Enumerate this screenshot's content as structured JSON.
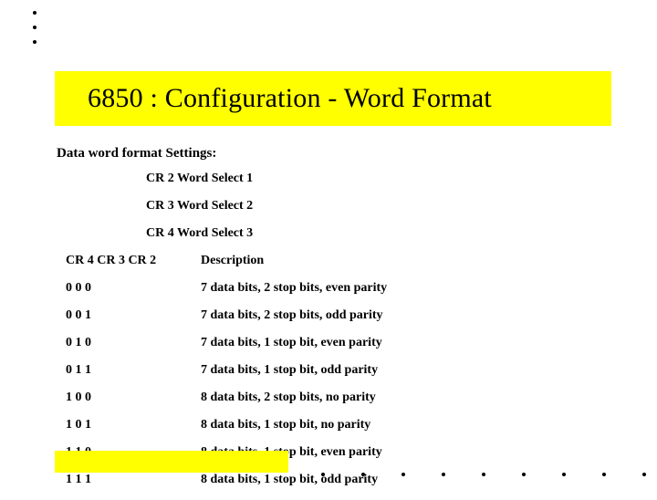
{
  "title": "6850 : Configuration - Word Format",
  "subtitle": "Data word format Settings:",
  "registers": [
    "CR 2 Word Select 1",
    "CR 3 Word Select 2",
    "CR 4 Word Select 3"
  ],
  "header": {
    "bits": "CR 4 CR 3 CR 2",
    "desc": "Description"
  },
  "rows": [
    {
      "bits": "0 0 0",
      "desc": "7 data bits, 2 stop bits, even parity"
    },
    {
      "bits": "0 0 1",
      "desc": "7 data bits, 2 stop bits, odd parity"
    },
    {
      "bits": "0 1 0",
      "desc": "7 data bits, 1 stop bit, even parity"
    },
    {
      "bits": "0 1 1",
      "desc": "7 data bits, 1 stop bit, odd parity"
    },
    {
      "bits": "1 0 0",
      "desc": "8 data bits, 2 stop bits, no parity"
    },
    {
      "bits": "1 0 1",
      "desc": "8 data bits, 1 stop bit, no parity"
    },
    {
      "bits": "1 1 0",
      "desc": "8 data bits, 1 stop bit, even parity"
    },
    {
      "bits": "1 1 1",
      "desc": "8 data bits, 1 stop bit, odd parity"
    }
  ],
  "colors": {
    "highlight": "#ffff00",
    "text": "#000000",
    "background": "#ffffff"
  },
  "fonts": {
    "title_size_pt": 30,
    "body_size_pt": 14,
    "family": "Times New Roman"
  }
}
